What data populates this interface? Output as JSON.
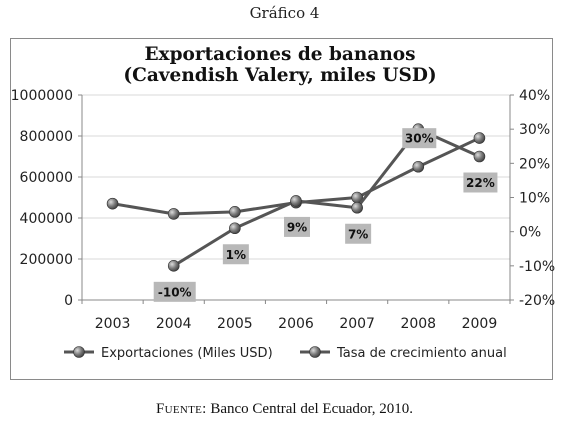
{
  "caption_top": "Gráfico 4",
  "source_label": "Fuente:",
  "source_text": " Banco Central del Ecuador, 2010.",
  "colors": {
    "line": "#555555",
    "marker": "#7a7a7a",
    "label_box": "#b8b8b8",
    "grid": "#d9d9d9"
  },
  "chart_data": {
    "type": "line",
    "title": [
      "Exportaciones de bananos",
      "(Cavendish Valery, miles USD)"
    ],
    "categories": [
      "2003",
      "2004",
      "2005",
      "2006",
      "2007",
      "2008",
      "2009"
    ],
    "series": [
      {
        "name": "Exportaciones  (Miles USD)",
        "axis": "left",
        "values": [
          470000,
          420000,
          430000,
          475000,
          500000,
          650000,
          790000
        ]
      },
      {
        "name": "Tasa de crecimiento anual",
        "axis": "right",
        "values": [
          null,
          -10,
          1,
          9,
          7,
          30,
          22
        ],
        "labels": [
          "",
          "-10%",
          "1%",
          "9%",
          "7%",
          "30%",
          "22%"
        ]
      }
    ],
    "y_left": {
      "range": [
        0,
        1000000
      ],
      "ticks": [
        0,
        200000,
        400000,
        600000,
        800000,
        1000000
      ],
      "tick_labels": [
        "0",
        "200000",
        "400000",
        "600000",
        "800000",
        "1000000"
      ]
    },
    "y_right": {
      "range": [
        -20,
        40
      ],
      "ticks": [
        -20,
        -10,
        0,
        10,
        20,
        30,
        40
      ],
      "tick_labels": [
        "-20%",
        "-10%",
        "0%",
        "10%",
        "20%",
        "30%",
        "40%"
      ]
    },
    "grid": true,
    "legend_position": "bottom"
  }
}
